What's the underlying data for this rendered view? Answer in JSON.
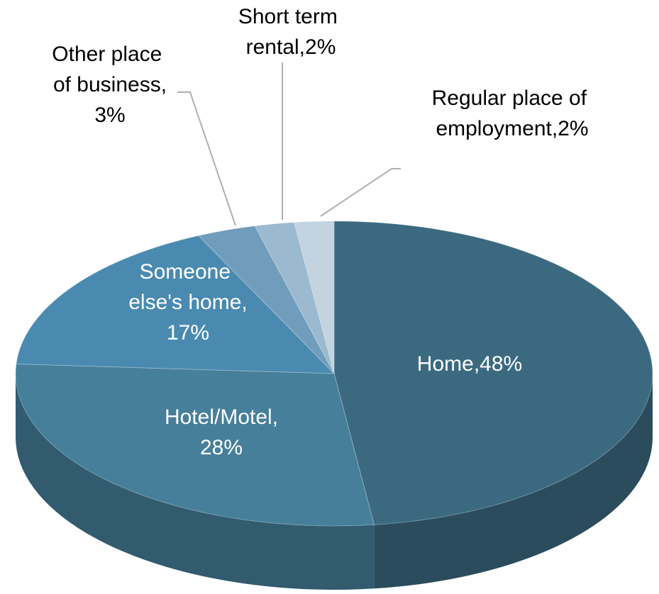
{
  "chart_data": {
    "type": "pie",
    "categories": [
      "Home,",
      "Hotel/Motel,",
      "Someone else's home,",
      "Other place of business,",
      "Short term rental,",
      "Regular place of employment,"
    ],
    "values": [
      48,
      28,
      17,
      3,
      2,
      2
    ],
    "value_labels": [
      "48%",
      "28%",
      "17%",
      "3%",
      "2%",
      "2%"
    ],
    "colors": [
      "#3b6a80",
      "#467f9a",
      "#4a8ab0",
      "#6f9dbb",
      "#9bbad0",
      "#c3d3df"
    ]
  }
}
